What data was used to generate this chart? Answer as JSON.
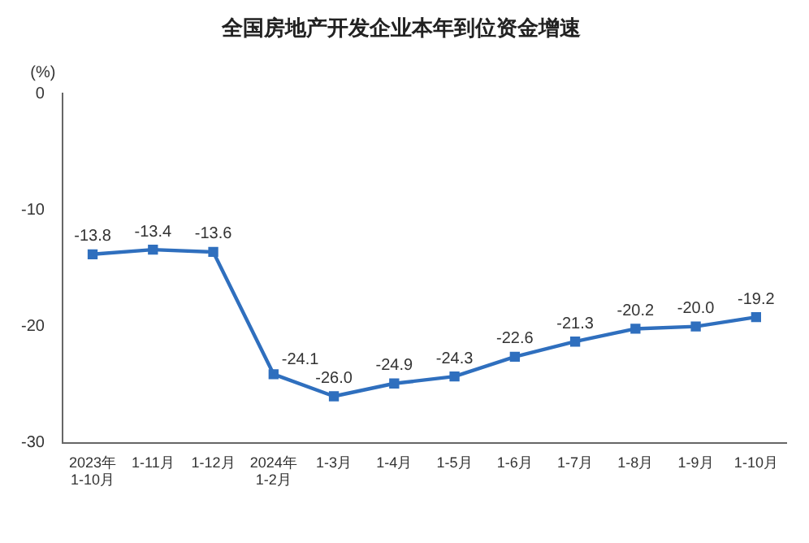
{
  "chart_data": {
    "type": "line",
    "title": "全国房地产开发企业本年到位资金增速",
    "ylabel": "(%)",
    "categories": [
      "2023年\n1-10月",
      "1-11月",
      "1-12月",
      "2024年\n1-2月",
      "1-3月",
      "1-4月",
      "1-5月",
      "1-6月",
      "1-7月",
      "1-8月",
      "1-9月",
      "1-10月"
    ],
    "series": [
      {
        "color": "#2f6fbe",
        "values": [
          -13.8,
          -13.4,
          -13.6,
          -24.1,
          -26.0,
          -24.9,
          -24.3,
          -22.6,
          -21.3,
          -20.2,
          -20.0,
          -19.2
        ],
        "value_labels": [
          "-13.8",
          "-13.4",
          "-13.6",
          "-24.1",
          "-26.0",
          "-24.9",
          "-24.3",
          "-22.6",
          "-21.3",
          "-20.2",
          "-20.0",
          "-19.2"
        ]
      }
    ],
    "ylim": [
      -30,
      0
    ],
    "yticks": [
      -30,
      -20,
      -10,
      0
    ],
    "grid": false,
    "legend": false,
    "marker": "square",
    "line_style": "solid"
  }
}
